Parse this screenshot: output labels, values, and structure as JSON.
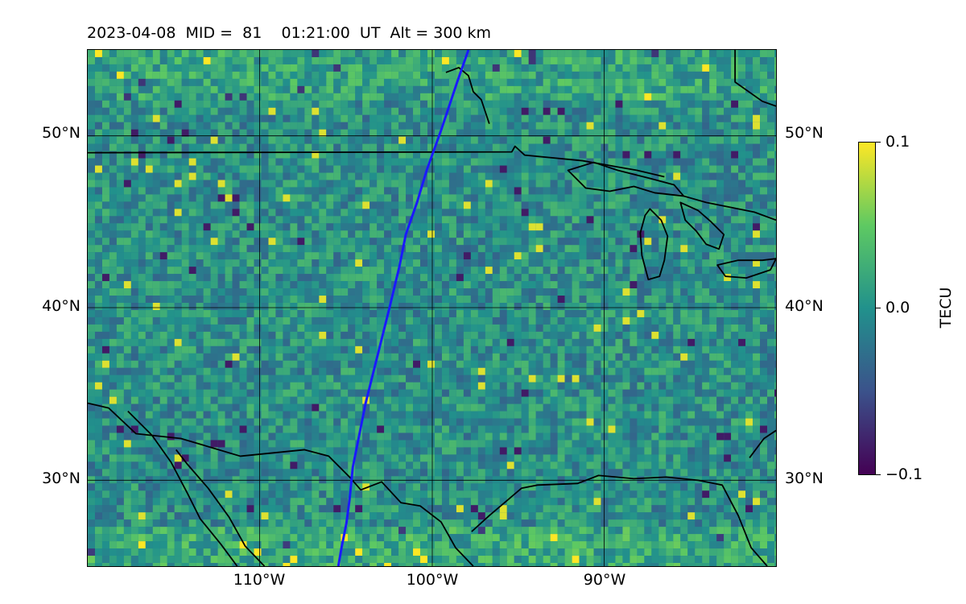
{
  "title": "2023-04-08  MID =  81    01:21:00  UT  Alt = 300 km",
  "latitude_labels": [
    "50°N",
    "40°N",
    "30°N"
  ],
  "longitude_labels": [
    "110°W",
    "100°W",
    "90°W"
  ],
  "colorbar": {
    "label": "TECU",
    "ticks": [
      "0.1",
      "0.0",
      "−0.1"
    ],
    "min": -0.1,
    "max": 0.1,
    "colormap": "viridis"
  },
  "map_extent": {
    "lon": [
      -120,
      -80
    ],
    "lat": [
      25,
      55
    ]
  },
  "colors": {
    "trajectory": "#1a1aff",
    "coastline": "#000000",
    "gridlines": "#000000"
  }
}
